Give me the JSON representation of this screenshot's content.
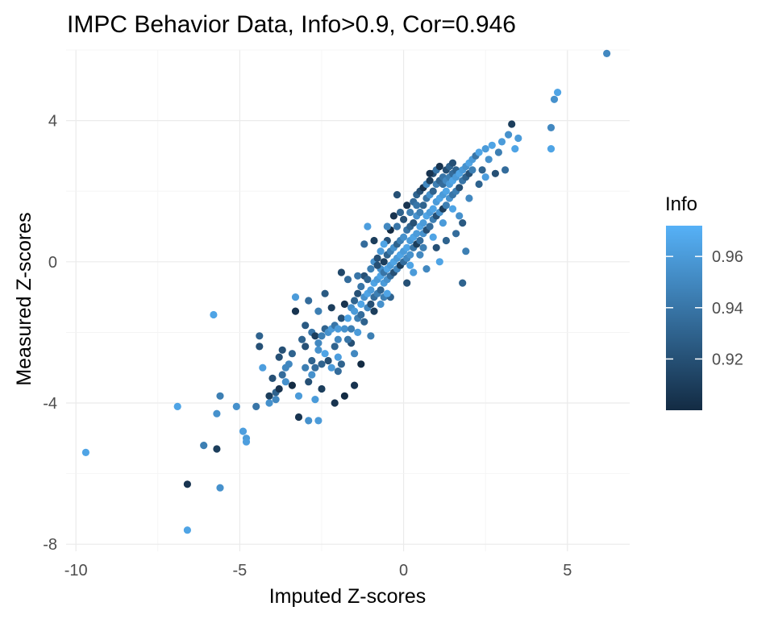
{
  "chart_data": {
    "type": "scatter",
    "title": "IMPC Behavior Data, Info>0.9, Cor=0.946",
    "xlabel": "Imputed Z-scores",
    "ylabel": "Measured Z-scores",
    "xlim": [
      -10.3,
      6.9
    ],
    "ylim": [
      -8.2,
      6.0
    ],
    "x_ticks": [
      -10,
      -5,
      0,
      5
    ],
    "x_tick_labels": [
      "-10",
      "-5",
      "0",
      "5"
    ],
    "y_ticks": [
      -8,
      -4,
      0,
      4
    ],
    "y_tick_labels": [
      "-8",
      "-4",
      "0",
      "4"
    ],
    "grid": true,
    "legend": {
      "title": "Info",
      "position": "right",
      "range": [
        0.9,
        0.972
      ],
      "ticks": [
        0.92,
        0.94,
        0.96
      ],
      "tick_labels": [
        "0.92",
        "0.94",
        "0.96"
      ],
      "color_low": "#132b43",
      "color_high": "#56b1f7"
    },
    "points": [
      [
        -9.7,
        -5.4,
        0.965
      ],
      [
        -6.9,
        -4.1,
        0.965
      ],
      [
        -6.6,
        -7.6,
        0.965
      ],
      [
        -6.6,
        -6.3,
        0.905
      ],
      [
        -6.1,
        -5.2,
        0.945
      ],
      [
        -5.8,
        -1.5,
        0.965
      ],
      [
        -5.7,
        -4.3,
        0.955
      ],
      [
        -5.7,
        -5.3,
        0.91
      ],
      [
        -5.6,
        -6.4,
        0.955
      ],
      [
        -5.6,
        -3.8,
        0.945
      ],
      [
        -5.1,
        -4.1,
        0.955
      ],
      [
        -4.9,
        -4.8,
        0.962
      ],
      [
        -4.8,
        -5.0,
        0.96
      ],
      [
        -4.8,
        -5.1,
        0.962
      ],
      [
        -4.5,
        -4.1,
        0.94
      ],
      [
        -4.4,
        -2.4,
        0.92
      ],
      [
        -4.3,
        -3.0,
        0.962
      ],
      [
        -4.1,
        -3.8,
        0.91
      ],
      [
        -4.0,
        -3.3,
        0.92
      ],
      [
        -3.9,
        -3.7,
        0.93
      ],
      [
        -3.9,
        -3.9,
        0.95
      ],
      [
        -3.8,
        -3.6,
        0.905
      ],
      [
        -3.7,
        -2.5,
        0.92
      ],
      [
        -3.7,
        -3.2,
        0.935
      ],
      [
        -3.6,
        -3.4,
        0.955
      ],
      [
        -3.5,
        -2.9,
        0.95
      ],
      [
        -3.4,
        -2.6,
        0.93
      ],
      [
        -3.4,
        -3.5,
        0.9
      ],
      [
        -3.3,
        -1.0,
        0.96
      ],
      [
        -3.2,
        -4.4,
        0.905
      ],
      [
        -3.2,
        -3.8,
        0.96
      ],
      [
        -3.1,
        -2.2,
        0.93
      ],
      [
        -3.0,
        -3.0,
        0.945
      ],
      [
        -3.0,
        -2.4,
        0.92
      ],
      [
        -2.9,
        -4.5,
        0.955
      ],
      [
        -2.9,
        -3.4,
        0.92
      ],
      [
        -2.8,
        -2.8,
        0.93
      ],
      [
        -2.8,
        -3.2,
        0.955
      ],
      [
        -2.8,
        -2.0,
        0.94
      ],
      [
        -2.7,
        -2.1,
        0.91
      ],
      [
        -2.7,
        -3.0,
        0.935
      ],
      [
        -2.6,
        -2.5,
        0.955
      ],
      [
        -2.6,
        -4.5,
        0.96
      ],
      [
        -2.6,
        -2.3,
        0.95
      ],
      [
        -2.5,
        -2.1,
        0.945
      ],
      [
        -2.5,
        -3.6,
        0.91
      ],
      [
        -2.4,
        -1.9,
        0.93
      ],
      [
        -2.4,
        -2.6,
        0.965
      ],
      [
        -2.3,
        -2.0,
        0.955
      ],
      [
        -2.3,
        -2.8,
        0.92
      ],
      [
        -2.2,
        -1.9,
        0.96
      ],
      [
        -2.2,
        -1.3,
        0.91
      ],
      [
        -2.1,
        -1.8,
        0.94
      ],
      [
        -2.1,
        -2.4,
        0.93
      ],
      [
        -2.0,
        -1.9,
        0.96
      ],
      [
        -2.0,
        -2.2,
        0.95
      ],
      [
        -2.0,
        -2.7,
        0.962
      ],
      [
        -1.9,
        -1.6,
        0.92
      ],
      [
        -1.9,
        -2.9,
        0.93
      ],
      [
        -1.8,
        -1.9,
        0.955
      ],
      [
        -1.8,
        -1.2,
        0.905
      ],
      [
        -1.8,
        -3.8,
        0.9
      ],
      [
        -1.7,
        -0.5,
        0.935
      ],
      [
        -1.7,
        -1.6,
        0.965
      ],
      [
        -1.6,
        -1.3,
        0.955
      ],
      [
        -1.6,
        -2.3,
        0.92
      ],
      [
        -1.6,
        -1.9,
        0.945
      ],
      [
        -1.5,
        -1.1,
        0.93
      ],
      [
        -1.5,
        -1.4,
        0.96
      ],
      [
        -1.5,
        -3.5,
        0.905
      ],
      [
        -1.4,
        -1.6,
        0.945
      ],
      [
        -1.4,
        -0.9,
        0.92
      ],
      [
        -1.4,
        -2.0,
        0.96
      ],
      [
        -1.3,
        -1.2,
        0.965
      ],
      [
        -1.3,
        -0.7,
        0.94
      ],
      [
        -1.3,
        -1.5,
        0.935
      ],
      [
        -1.2,
        -1.0,
        0.955
      ],
      [
        -1.2,
        -1.7,
        0.93
      ],
      [
        -1.2,
        -0.4,
        0.92
      ],
      [
        -1.1,
        -0.9,
        0.965
      ],
      [
        -1.1,
        -1.3,
        0.95
      ],
      [
        -1.1,
        -0.5,
        0.93
      ],
      [
        -1.0,
        -0.8,
        0.96
      ],
      [
        -1.0,
        -1.2,
        0.92
      ],
      [
        -1.0,
        -0.2,
        0.945
      ],
      [
        -0.9,
        -0.6,
        0.965
      ],
      [
        -0.9,
        -1.0,
        0.935
      ],
      [
        -0.9,
        0.0,
        0.955
      ],
      [
        -0.9,
        -1.4,
        0.91
      ],
      [
        -0.8,
        -0.5,
        0.96
      ],
      [
        -0.8,
        -0.9,
        0.945
      ],
      [
        -0.8,
        0.1,
        0.92
      ],
      [
        -0.7,
        -0.4,
        0.965
      ],
      [
        -0.7,
        -0.8,
        0.93
      ],
      [
        -0.7,
        -0.2,
        0.955
      ],
      [
        -0.7,
        0.3,
        0.96
      ],
      [
        -0.6,
        -0.3,
        0.94
      ],
      [
        -0.6,
        -0.6,
        0.96
      ],
      [
        -0.6,
        0.0,
        0.91
      ],
      [
        -0.6,
        -1.0,
        0.945
      ],
      [
        -0.5,
        -0.2,
        0.965
      ],
      [
        -0.5,
        0.2,
        0.93
      ],
      [
        -0.5,
        -0.5,
        0.955
      ],
      [
        -0.5,
        0.6,
        0.92
      ],
      [
        -0.4,
        -0.1,
        0.96
      ],
      [
        -0.4,
        0.3,
        0.945
      ],
      [
        -0.4,
        -0.4,
        0.935
      ],
      [
        -0.4,
        0.9,
        0.9
      ],
      [
        -0.3,
        0.0,
        0.965
      ],
      [
        -0.3,
        0.4,
        0.955
      ],
      [
        -0.3,
        -0.3,
        0.92
      ],
      [
        -0.3,
        1.3,
        0.905
      ],
      [
        -0.2,
        0.1,
        0.96
      ],
      [
        -0.2,
        0.5,
        0.93
      ],
      [
        -0.2,
        -0.2,
        0.95
      ],
      [
        -0.2,
        1.0,
        0.94
      ],
      [
        -0.1,
        0.2,
        0.965
      ],
      [
        -0.1,
        0.6,
        0.945
      ],
      [
        -0.1,
        -0.1,
        0.91
      ],
      [
        -0.1,
        1.4,
        0.93
      ],
      [
        0.0,
        0.3,
        0.96
      ],
      [
        0.0,
        0.7,
        0.955
      ],
      [
        0.0,
        0.0,
        0.935
      ],
      [
        0.0,
        1.2,
        0.92
      ],
      [
        0.1,
        0.4,
        0.965
      ],
      [
        0.1,
        0.9,
        0.94
      ],
      [
        0.1,
        0.1,
        0.95
      ],
      [
        0.1,
        1.6,
        0.905
      ],
      [
        0.2,
        0.6,
        0.96
      ],
      [
        0.2,
        1.0,
        0.93
      ],
      [
        0.2,
        0.2,
        0.955
      ],
      [
        0.2,
        1.4,
        0.945
      ],
      [
        0.3,
        0.7,
        0.965
      ],
      [
        0.3,
        1.1,
        0.92
      ],
      [
        0.3,
        0.4,
        0.94
      ],
      [
        0.3,
        1.7,
        0.935
      ],
      [
        0.4,
        0.8,
        0.96
      ],
      [
        0.4,
        1.3,
        0.955
      ],
      [
        0.4,
        0.5,
        0.91
      ],
      [
        0.4,
        1.9,
        0.93
      ],
      [
        0.5,
        1.0,
        0.965
      ],
      [
        0.5,
        1.4,
        0.945
      ],
      [
        0.5,
        0.6,
        0.935
      ],
      [
        0.5,
        2.0,
        0.92
      ],
      [
        0.6,
        1.1,
        0.96
      ],
      [
        0.6,
        1.6,
        0.93
      ],
      [
        0.6,
        0.8,
        0.955
      ],
      [
        0.6,
        2.1,
        0.905
      ],
      [
        0.7,
        1.3,
        0.965
      ],
      [
        0.7,
        1.8,
        0.94
      ],
      [
        0.7,
        0.9,
        0.92
      ],
      [
        0.7,
        2.2,
        0.95
      ],
      [
        0.8,
        1.4,
        0.96
      ],
      [
        0.8,
        1.9,
        0.955
      ],
      [
        0.8,
        1.0,
        0.935
      ],
      [
        0.8,
        2.3,
        0.91
      ],
      [
        0.9,
        1.5,
        0.965
      ],
      [
        0.9,
        2.0,
        0.93
      ],
      [
        0.9,
        1.2,
        0.945
      ],
      [
        0.9,
        2.5,
        0.92
      ],
      [
        1.0,
        1.7,
        0.96
      ],
      [
        1.0,
        2.2,
        0.945
      ],
      [
        1.0,
        1.3,
        0.92
      ],
      [
        1.0,
        2.6,
        0.94
      ],
      [
        1.1,
        1.8,
        0.965
      ],
      [
        1.1,
        2.3,
        0.93
      ],
      [
        1.1,
        1.4,
        0.955
      ],
      [
        1.1,
        2.7,
        0.905
      ],
      [
        1.2,
        1.9,
        0.96
      ],
      [
        1.2,
        2.4,
        0.94
      ],
      [
        1.2,
        1.5,
        0.91
      ],
      [
        1.2,
        2.2,
        0.935
      ],
      [
        1.3,
        2.0,
        0.965
      ],
      [
        1.3,
        2.6,
        0.92
      ],
      [
        1.3,
        1.6,
        0.945
      ],
      [
        1.3,
        2.3,
        0.95
      ],
      [
        1.4,
        2.2,
        0.96
      ],
      [
        1.4,
        2.7,
        0.93
      ],
      [
        1.4,
        1.8,
        0.955
      ],
      [
        1.4,
        2.4,
        0.945
      ],
      [
        1.5,
        2.3,
        0.965
      ],
      [
        1.5,
        2.8,
        0.92
      ],
      [
        1.5,
        1.9,
        0.94
      ],
      [
        1.5,
        2.5,
        0.935
      ],
      [
        1.6,
        2.4,
        0.96
      ],
      [
        1.6,
        2.0,
        0.945
      ],
      [
        1.6,
        2.6,
        0.93
      ],
      [
        1.7,
        2.5,
        0.965
      ],
      [
        1.7,
        2.1,
        0.92
      ],
      [
        1.8,
        2.6,
        0.96
      ],
      [
        1.8,
        2.3,
        0.94
      ],
      [
        1.9,
        2.7,
        0.955
      ],
      [
        1.9,
        2.4,
        0.93
      ],
      [
        2.0,
        2.8,
        0.965
      ],
      [
        2.0,
        2.5,
        0.92
      ],
      [
        2.1,
        2.9,
        0.96
      ],
      [
        2.1,
        2.6,
        0.945
      ],
      [
        2.2,
        3.0,
        0.94
      ],
      [
        2.3,
        3.1,
        0.965
      ],
      [
        2.4,
        2.6,
        0.93
      ],
      [
        2.5,
        3.2,
        0.96
      ],
      [
        2.6,
        2.9,
        0.955
      ],
      [
        2.7,
        3.3,
        0.965
      ],
      [
        2.8,
        2.5,
        0.92
      ],
      [
        2.9,
        3.1,
        0.945
      ],
      [
        3.0,
        3.4,
        0.96
      ],
      [
        3.1,
        2.6,
        0.935
      ],
      [
        3.2,
        3.6,
        0.955
      ],
      [
        3.3,
        3.9,
        0.91
      ],
      [
        3.4,
        3.2,
        0.965
      ],
      [
        3.5,
        3.5,
        0.96
      ],
      [
        4.5,
        3.2,
        0.965
      ],
      [
        4.5,
        3.8,
        0.95
      ],
      [
        4.6,
        4.6,
        0.955
      ],
      [
        4.7,
        4.8,
        0.965
      ],
      [
        6.2,
        5.9,
        0.95
      ],
      [
        -4.4,
        -2.1,
        0.93
      ],
      [
        -3.3,
        -1.4,
        0.905
      ],
      [
        -2.4,
        -0.9,
        0.925
      ],
      [
        -1.9,
        -0.3,
        0.915
      ],
      [
        -1.4,
        -0.4,
        0.94
      ],
      [
        -1.2,
        0.5,
        0.935
      ],
      [
        -0.9,
        0.6,
        0.91
      ],
      [
        -0.5,
        1.0,
        0.95
      ],
      [
        -1.1,
        1.0,
        0.962
      ],
      [
        -0.2,
        1.9,
        0.92
      ],
      [
        0.8,
        2.5,
        0.905
      ],
      [
        0.3,
        -0.3,
        0.96
      ],
      [
        0.7,
        -0.2,
        0.95
      ],
      [
        1.0,
        0.4,
        0.92
      ],
      [
        1.3,
        0.6,
        0.93
      ],
      [
        1.6,
        0.8,
        0.935
      ],
      [
        1.8,
        1.1,
        0.925
      ],
      [
        1.9,
        0.3,
        0.945
      ],
      [
        1.8,
        -0.6,
        0.93
      ],
      [
        1.1,
        0.0,
        0.965
      ],
      [
        -1.5,
        -2.6,
        0.95
      ],
      [
        -2.0,
        -3.1,
        0.935
      ],
      [
        -0.7,
        -1.2,
        0.955
      ],
      [
        -0.4,
        -1.0,
        0.93
      ],
      [
        0.1,
        -0.6,
        0.92
      ],
      [
        -3.6,
        -3.0,
        0.95
      ],
      [
        -2.2,
        -3.0,
        0.96
      ],
      [
        -3.0,
        -1.8,
        0.925
      ],
      [
        -1.7,
        -2.2,
        0.94
      ],
      [
        -1.0,
        -2.1,
        0.945
      ],
      [
        -0.5,
        -0.9,
        0.965
      ],
      [
        0.5,
        0.2,
        0.95
      ],
      [
        0.9,
        0.7,
        0.965
      ],
      [
        1.2,
        1.1,
        0.96
      ],
      [
        1.5,
        1.5,
        0.965
      ],
      [
        2.3,
        2.2,
        0.93
      ],
      [
        2.5,
        2.4,
        0.962
      ],
      [
        2.0,
        1.8,
        0.95
      ],
      [
        1.7,
        1.3,
        0.955
      ],
      [
        -0.6,
        0.5,
        0.965
      ],
      [
        0.4,
        1.6,
        0.94
      ],
      [
        -2.6,
        -1.4,
        0.945
      ],
      [
        -2.9,
        -1.1,
        0.935
      ],
      [
        -3.8,
        -2.7,
        0.92
      ],
      [
        -4.1,
        -4.0,
        0.955
      ],
      [
        -2.5,
        -2.9,
        0.93
      ],
      [
        -1.3,
        -2.9,
        0.9
      ],
      [
        -2.1,
        -4.0,
        0.905
      ],
      [
        -2.7,
        -3.9,
        0.96
      ],
      [
        -0.8,
        -0.1,
        0.92
      ],
      [
        0.2,
        -0.1,
        0.965
      ],
      [
        0.6,
        0.4,
        0.945
      ]
    ]
  }
}
